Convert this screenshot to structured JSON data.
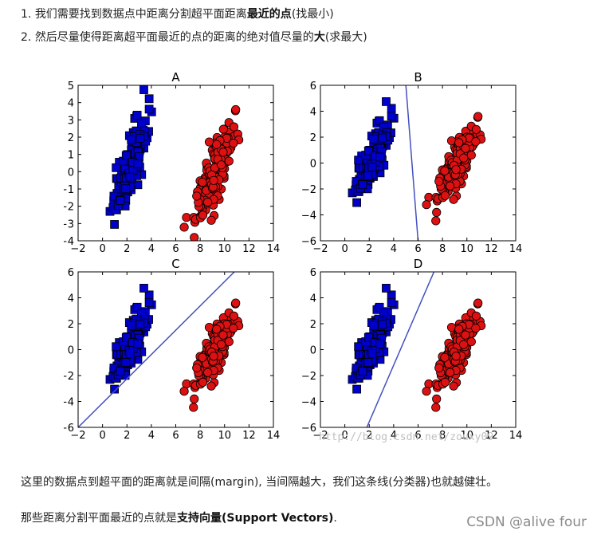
{
  "text": {
    "item1": {
      "num": "1.",
      "pre": "我们需要找到数据点中距离分割超平面距离",
      "bold": "最近的点",
      "post": "(找最小)"
    },
    "item2": {
      "num": "2.",
      "pre": "然后尽量使得距离超平面最近的点的距离的绝对值尽量的",
      "bold": "大",
      "post": "(求最大)"
    },
    "para1": "这里的数据点到超平面的距离就是间隔(margin), 当间隔越大，我们这条线(分类器)也就越健壮。",
    "para2_pre": "那些距离分割平面最近的点就是",
    "para2_bold": "支持向量(Support Vectors)",
    "para2_post": ".",
    "watermark_csdn": "CSDN @alive four",
    "watermark_url": "http://blog.csdn.net/zouxy09"
  },
  "colors": {
    "blue": "#0000cc",
    "red": "#dd1111",
    "line": "#4450c0"
  },
  "chart_data": [
    {
      "type": "scatter",
      "title": "A",
      "xlim": [
        -2,
        14
      ],
      "ylim": [
        -4,
        5
      ],
      "xticks": [
        -2,
        0,
        2,
        4,
        6,
        8,
        10,
        12,
        14
      ],
      "yticks": [
        -4,
        -3,
        -2,
        -1,
        0,
        1,
        2,
        3,
        4,
        5
      ],
      "series": [
        {
          "marker": "square",
          "center": [
            2.2,
            0.3
          ],
          "spread": [
            1.0,
            1.5
          ],
          "count": 140
        },
        {
          "marker": "circle",
          "center": [
            9.2,
            0.0
          ],
          "spread": [
            1.2,
            1.5
          ],
          "count": 160
        }
      ],
      "line": null
    },
    {
      "type": "scatter",
      "title": "B",
      "xlim": [
        -2,
        14
      ],
      "ylim": [
        -6,
        6
      ],
      "xticks": [
        -2,
        0,
        2,
        4,
        6,
        8,
        10,
        12,
        14
      ],
      "yticks": [
        -6,
        -4,
        -2,
        0,
        2,
        4,
        6
      ],
      "series": [
        {
          "marker": "square",
          "center": [
            2.2,
            0.3
          ],
          "spread": [
            1.0,
            1.5
          ],
          "count": 140
        },
        {
          "marker": "circle",
          "center": [
            9.2,
            0.0
          ],
          "spread": [
            1.2,
            1.5
          ],
          "count": 160
        }
      ],
      "line": [
        [
          5.0,
          6.0
        ],
        [
          6.0,
          -6.0
        ]
      ]
    },
    {
      "type": "scatter",
      "title": "C",
      "xlim": [
        -2,
        14
      ],
      "ylim": [
        -6,
        6
      ],
      "xticks": [
        -2,
        0,
        2,
        4,
        6,
        8,
        10,
        12,
        14
      ],
      "yticks": [
        -6,
        -4,
        -2,
        0,
        2,
        4,
        6
      ],
      "series": [
        {
          "marker": "square",
          "center": [
            2.2,
            0.3
          ],
          "spread": [
            1.0,
            1.5
          ],
          "count": 140
        },
        {
          "marker": "circle",
          "center": [
            9.2,
            0.0
          ],
          "spread": [
            1.2,
            1.5
          ],
          "count": 160
        }
      ],
      "line": [
        [
          -2.0,
          -6.0
        ],
        [
          10.8,
          6.0
        ]
      ]
    },
    {
      "type": "scatter",
      "title": "D",
      "xlim": [
        -2,
        14
      ],
      "ylim": [
        -6,
        6
      ],
      "xticks": [
        -2,
        0,
        2,
        4,
        6,
        8,
        10,
        12,
        14
      ],
      "yticks": [
        -6,
        -4,
        -2,
        0,
        2,
        4,
        6
      ],
      "series": [
        {
          "marker": "square",
          "center": [
            2.2,
            0.3
          ],
          "spread": [
            1.0,
            1.5
          ],
          "count": 140
        },
        {
          "marker": "circle",
          "center": [
            9.2,
            0.0
          ],
          "spread": [
            1.2,
            1.5
          ],
          "count": 160
        }
      ],
      "line": [
        [
          1.8,
          -6.0
        ],
        [
          7.3,
          6.0
        ]
      ]
    }
  ]
}
